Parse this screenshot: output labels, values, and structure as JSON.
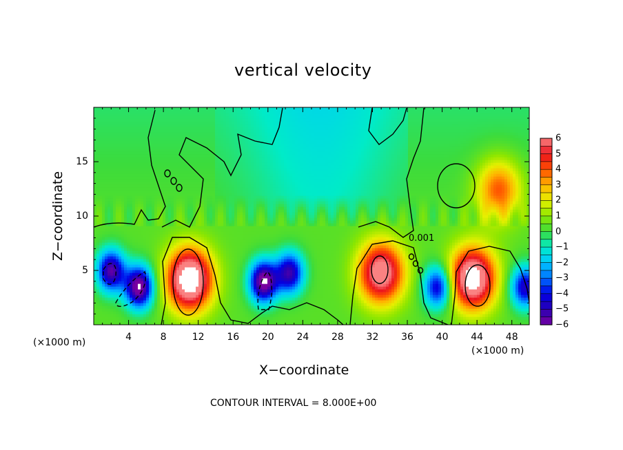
{
  "chart_data": {
    "type": "heatmap",
    "title": "vertical velocity",
    "xlabel": "X−coordinate",
    "ylabel": "Z−coordinate",
    "x_unit": "(×1000 m)",
    "xlim": [
      0,
      50
    ],
    "ylim": [
      0,
      20
    ],
    "x_ticks": [
      "4",
      "8",
      "12",
      "16",
      "20",
      "24",
      "28",
      "32",
      "36",
      "40",
      "44",
      "48"
    ],
    "y_ticks": [
      "5",
      "10",
      "15"
    ],
    "colorbar": {
      "min": -6,
      "max": 6,
      "tick_labels": [
        "6",
        "5",
        "4",
        "3",
        "2",
        "1",
        "0",
        "−1",
        "−2",
        "−3",
        "−4",
        "−5",
        "−6"
      ]
    },
    "contour_label": "0.001",
    "footer": "CONTOUR INTERVAL = 8.000E+00",
    "features": [
      {
        "kind": "updraft",
        "x": 11.0,
        "z": 4.2,
        "peak": 8.0
      },
      {
        "kind": "updraft",
        "x": 33.0,
        "z": 4.8,
        "peak": 6.5
      },
      {
        "kind": "updraft",
        "x": 43.5,
        "z": 4.3,
        "peak": 7.5
      },
      {
        "kind": "downdraft",
        "x": 2.0,
        "z": 5.0,
        "peak": -6.0
      },
      {
        "kind": "downdraft",
        "x": 5.2,
        "z": 3.5,
        "peak": -7.0
      },
      {
        "kind": "downdraft",
        "x": 19.5,
        "z": 4.0,
        "peak": -7.0
      },
      {
        "kind": "downdraft",
        "x": 22.5,
        "z": 4.8,
        "peak": -5.5
      },
      {
        "kind": "downdraft",
        "x": 39.5,
        "z": 3.5,
        "peak": -5.0
      },
      {
        "kind": "downdraft",
        "x": 49.5,
        "z": 3.5,
        "peak": -5.0
      },
      {
        "kind": "updraft",
        "x": 46.5,
        "z": 12.5,
        "peak": 3.8
      }
    ]
  }
}
